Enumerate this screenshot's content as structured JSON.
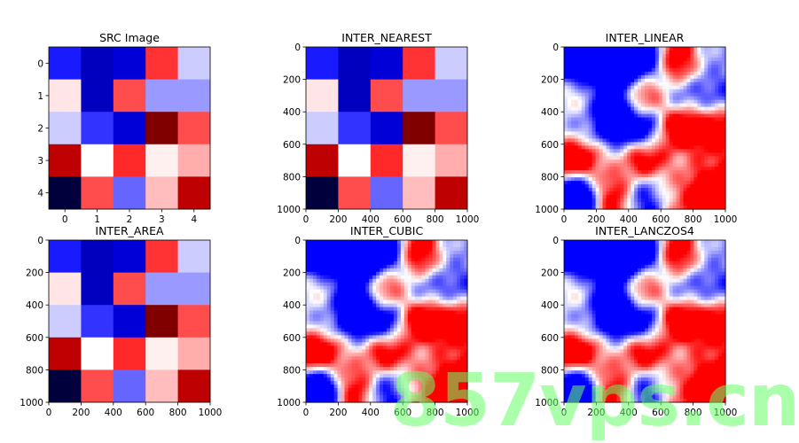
{
  "chart_data": [
    {
      "type": "heatmap",
      "title": "SRC Image",
      "render": "blocks",
      "xticks": [
        "0",
        "1",
        "2",
        "3",
        "4"
      ],
      "yticks": [
        "0",
        "1",
        "2",
        "3",
        "4"
      ],
      "xlim": [
        -0.5,
        4.5
      ],
      "ylim": [
        4.5,
        -0.5
      ]
    },
    {
      "type": "heatmap",
      "title": "INTER_NEAREST",
      "render": "blocks",
      "xticks": [
        "0",
        "200",
        "400",
        "600",
        "800",
        "1000"
      ],
      "yticks": [
        "0",
        "200",
        "400",
        "600",
        "800",
        "1000"
      ],
      "xlim": [
        0,
        1000
      ],
      "ylim": [
        1000,
        0
      ]
    },
    {
      "type": "heatmap",
      "title": "INTER_LINEAR",
      "render": "smooth",
      "xticks": [
        "0",
        "200",
        "400",
        "600",
        "800",
        "1000"
      ],
      "yticks": [
        "0",
        "200",
        "400",
        "600",
        "800",
        "1000"
      ],
      "xlim": [
        0,
        1000
      ],
      "ylim": [
        1000,
        0
      ]
    },
    {
      "type": "heatmap",
      "title": "INTER_AREA",
      "render": "blocks",
      "xticks": [
        "0",
        "200",
        "400",
        "600",
        "800",
        "1000"
      ],
      "yticks": [
        "0",
        "200",
        "400",
        "600",
        "800",
        "1000"
      ],
      "xlim": [
        0,
        1000
      ],
      "ylim": [
        1000,
        0
      ]
    },
    {
      "type": "heatmap",
      "title": "INTER_CUBIC",
      "render": "smooth",
      "xticks": [
        "0",
        "200",
        "400",
        "600",
        "800",
        "1000"
      ],
      "yticks": [
        "0",
        "200",
        "400",
        "600",
        "800",
        "1000"
      ],
      "xlim": [
        0,
        1000
      ],
      "ylim": [
        1000,
        0
      ]
    },
    {
      "type": "heatmap",
      "title": "INTER_LANCZOS4",
      "render": "smooth",
      "xticks": [
        "0",
        "200",
        "400",
        "600",
        "800",
        "1000"
      ],
      "yticks": [
        "0",
        "200",
        "400",
        "600",
        "800",
        "1000"
      ],
      "xlim": [
        0,
        1000
      ],
      "ylim": [
        1000,
        0
      ]
    }
  ],
  "source_grid": {
    "colormap": "bwr",
    "values": [
      [
        0.05,
        0.02,
        0.04,
        0.9,
        0.4
      ],
      [
        0.55,
        0.02,
        0.85,
        0.3,
        0.3
      ],
      [
        0.4,
        0.1,
        0.03,
        1.0,
        0.85
      ],
      [
        0.96,
        0.5,
        0.92,
        0.53,
        0.66
      ],
      [
        0.0,
        0.85,
        0.2,
        0.63,
        0.97
      ]
    ]
  },
  "watermark": {
    "text": "857vps.cn",
    "color": "#66ff66"
  }
}
